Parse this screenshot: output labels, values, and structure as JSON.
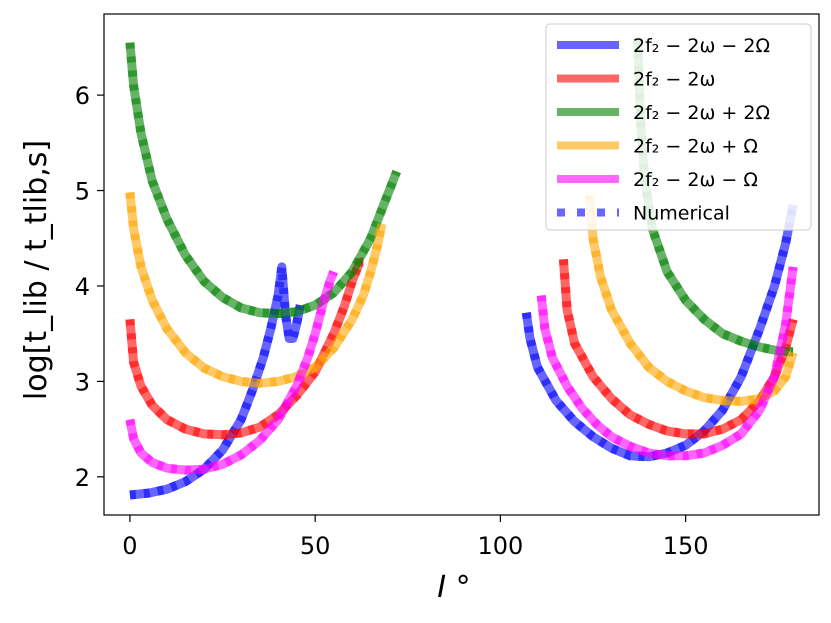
{
  "chart_data": {
    "type": "line",
    "title": "",
    "xlabel": "I °",
    "ylabel": "log[t_lib / t_tlib,s]",
    "xlim": [
      -7,
      186
    ],
    "ylim": [
      1.6,
      6.85
    ],
    "xticks": [
      0,
      50,
      100,
      150
    ],
    "yticks": [
      2,
      3,
      4,
      5,
      6
    ],
    "grid": false,
    "legend_position": "top-right",
    "series": [
      {
        "name": "2f₂ − 2ω − 2Ω",
        "color": "#0000ff",
        "branches": [
          {
            "x": [
              0,
              5,
              10,
              15,
              20,
              25,
              30,
              33,
              36,
              38,
              40,
              41,
              42,
              43,
              44,
              45,
              46
            ],
            "y": [
              1.81,
              1.83,
              1.87,
              1.95,
              2.08,
              2.28,
              2.6,
              2.9,
              3.25,
              3.55,
              3.9,
              4.2,
              3.7,
              3.45,
              3.45,
              3.6,
              3.8
            ]
          },
          {
            "x": [
              107,
              108,
              110,
              115,
              120,
              125,
              130,
              135,
              140,
              145,
              150,
              155,
              160,
              165,
              170,
              174,
              177,
              179
            ],
            "y": [
              3.72,
              3.45,
              3.15,
              2.8,
              2.58,
              2.42,
              2.3,
              2.22,
              2.21,
              2.25,
              2.33,
              2.48,
              2.7,
              3.05,
              3.55,
              4.0,
              4.45,
              4.85
            ]
          }
        ]
      },
      {
        "name": "2f₂ − 2ω",
        "color": "#ff0000",
        "branches": [
          {
            "x": [
              0,
              1,
              3,
              6,
              10,
              15,
              20,
              25,
              30,
              35,
              40,
              45,
              50,
              55,
              58,
              60,
              62,
              63
            ],
            "y": [
              3.65,
              3.2,
              2.95,
              2.75,
              2.6,
              2.5,
              2.45,
              2.44,
              2.46,
              2.52,
              2.65,
              2.85,
              3.1,
              3.5,
              3.8,
              4.05,
              4.25,
              4.25
            ]
          },
          {
            "x": [
              117,
              118,
              120,
              125,
              130,
              135,
              140,
              145,
              150,
              155,
              160,
              165,
              170,
              174,
              177,
              179
            ],
            "y": [
              4.28,
              3.75,
              3.4,
              3.05,
              2.82,
              2.65,
              2.55,
              2.48,
              2.45,
              2.45,
              2.5,
              2.6,
              2.8,
              3.05,
              3.35,
              3.65
            ]
          }
        ]
      },
      {
        "name": "2f₂ − 2ω + 2Ω",
        "color": "#008000",
        "branches": [
          {
            "x": [
              0,
              1,
              3,
              6,
              10,
              15,
              20,
              25,
              30,
              35,
              40,
              45,
              50,
              55,
              60,
              65,
              68,
              70,
              72
            ],
            "y": [
              6.55,
              6.1,
              5.6,
              5.1,
              4.7,
              4.32,
              4.05,
              3.88,
              3.77,
              3.72,
              3.71,
              3.73,
              3.8,
              3.93,
              4.15,
              4.5,
              4.8,
              5.0,
              5.2
            ]
          },
          {
            "x": [
              137,
              138,
              139,
              141,
              145,
              150,
              155,
              160,
              165,
              170,
              175,
              178,
              179
            ],
            "y": [
              6.6,
              5.6,
              5.1,
              4.6,
              4.15,
              3.85,
              3.65,
              3.5,
              3.42,
              3.36,
              3.32,
              3.31,
              3.31
            ]
          }
        ]
      },
      {
        "name": "2f₂ − 2ω + Ω",
        "color": "#ffa500",
        "branches": [
          {
            "x": [
              0,
              1,
              3,
              6,
              10,
              15,
              20,
              25,
              30,
              35,
              40,
              45,
              50,
              55,
              60,
              63,
              65,
              67,
              68
            ],
            "y": [
              4.98,
              4.6,
              4.2,
              3.85,
              3.55,
              3.3,
              3.14,
              3.05,
              3.0,
              2.98,
              3.0,
              3.05,
              3.15,
              3.35,
              3.65,
              3.9,
              4.15,
              4.45,
              4.65
            ]
          },
          {
            "x": [
              124,
              125,
              127,
              130,
              135,
              140,
              145,
              150,
              155,
              160,
              165,
              170,
              174,
              177,
              179
            ],
            "y": [
              4.95,
              4.5,
              4.1,
              3.75,
              3.4,
              3.15,
              3.0,
              2.9,
              2.83,
              2.8,
              2.79,
              2.82,
              2.9,
              3.05,
              3.3
            ]
          }
        ]
      },
      {
        "name": "2f₂ − 2ω − Ω",
        "color": "#ff00ff",
        "branches": [
          {
            "x": [
              0,
              1,
              3,
              6,
              10,
              15,
              20,
              25,
              30,
              35,
              40,
              45,
              48,
              50,
              52,
              54,
              55
            ],
            "y": [
              2.6,
              2.4,
              2.25,
              2.15,
              2.09,
              2.07,
              2.08,
              2.13,
              2.23,
              2.38,
              2.6,
              2.95,
              3.25,
              3.5,
              3.8,
              4.05,
              4.15
            ]
          },
          {
            "x": [
              111,
              112,
              114,
              118,
              122,
              126,
              130,
              135,
              140,
              145,
              150,
              155,
              160,
              165,
              170,
              174,
              177,
              179
            ],
            "y": [
              3.9,
              3.55,
              3.25,
              2.95,
              2.72,
              2.55,
              2.42,
              2.32,
              2.25,
              2.22,
              2.22,
              2.25,
              2.33,
              2.45,
              2.7,
              3.05,
              3.6,
              4.2
            ]
          }
        ]
      }
    ],
    "numerical_overlay": {
      "name": "Numerical",
      "color": "#0000ff",
      "style": "dotted"
    }
  }
}
